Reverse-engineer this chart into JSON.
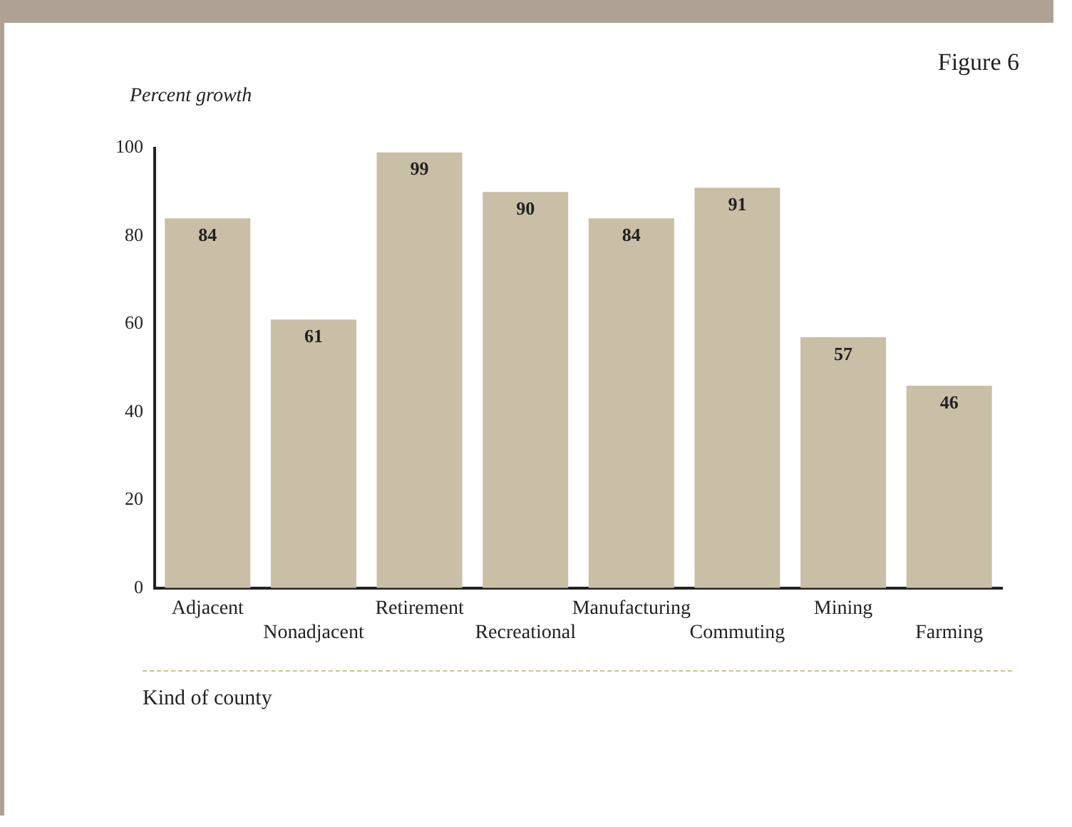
{
  "chart_data": {
    "type": "bar",
    "title": "Figure 6",
    "ylabel": "Percent growth",
    "xlabel": "Kind of county",
    "categories": [
      "Adjacent",
      "Nonadjacent",
      "Retirement",
      "Recreational",
      "Manufacturing",
      "Commuting",
      "Mining",
      "Farming"
    ],
    "values": [
      84,
      61,
      99,
      90,
      84,
      91,
      57,
      46
    ],
    "color": "#c9bfa6",
    "ylim": [
      0,
      100
    ],
    "yticks": [
      0,
      20,
      40,
      60,
      80,
      100
    ],
    "grid": false,
    "data_labels": true,
    "legend": false
  }
}
